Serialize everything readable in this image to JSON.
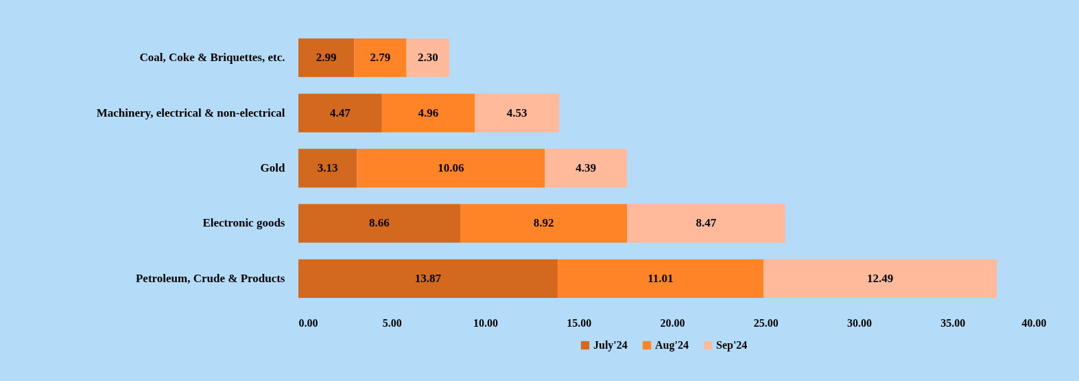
{
  "chart_data": {
    "type": "bar",
    "orientation": "horizontal",
    "stacked": true,
    "categories": [
      "Coal, Coke & Briquettes, etc.",
      "Machinery, electrical & non-electrical",
      "Gold",
      "Electronic goods",
      "Petroleum, Crude & Products"
    ],
    "series": [
      {
        "name": "July'24",
        "color": "#d2691e",
        "values": [
          2.99,
          4.47,
          3.13,
          8.66,
          13.87
        ],
        "value_labels": [
          "2.99",
          "4.47",
          "3.13",
          "8.66",
          "13.87"
        ]
      },
      {
        "name": "Aug'24",
        "color": "#ff8427",
        "values": [
          2.79,
          4.96,
          10.06,
          8.92,
          11.01
        ],
        "value_labels": [
          "2.79",
          "4.96",
          "10.06",
          "8.92",
          "11.01"
        ]
      },
      {
        "name": "Sep'24",
        "color": "#ffb99b",
        "values": [
          2.3,
          4.53,
          4.39,
          8.47,
          12.49
        ],
        "value_labels": [
          "2.30",
          "4.53",
          "4.39",
          "8.47",
          "12.49"
        ]
      }
    ],
    "xlim": [
      0,
      40
    ],
    "xticks": [
      {
        "value": 0,
        "label": "0.00"
      },
      {
        "value": 5,
        "label": "5.00"
      },
      {
        "value": 10,
        "label": "10.00"
      },
      {
        "value": 15,
        "label": "15.00"
      },
      {
        "value": 20,
        "label": "20.00"
      },
      {
        "value": 25,
        "label": "25.00"
      },
      {
        "value": 30,
        "label": "30.00"
      },
      {
        "value": 35,
        "label": "35.00"
      },
      {
        "value": 40,
        "label": "40.00"
      }
    ],
    "grid": false,
    "legend": "bottom"
  }
}
